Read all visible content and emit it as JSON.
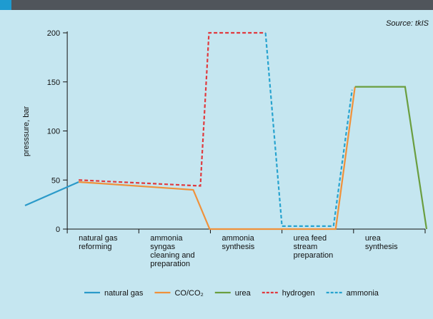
{
  "chart_data": {
    "type": "line",
    "source": "Source: tkIS",
    "ylabel": "presssure, bar",
    "categories": [
      "natural gas\nreforming",
      "ammonia\nsyngas\ncleaning and\npreparation",
      "ammonia\nsynthesis",
      "urea feed\nstream\npreparation",
      "urea\nsynthesis"
    ],
    "xlim": [
      -0.6,
      5.05
    ],
    "xticks": [
      0,
      1,
      2,
      3,
      4,
      5
    ],
    "ylim": [
      0,
      200
    ],
    "yticks": [
      0,
      50,
      100,
      150,
      200
    ],
    "series": [
      {
        "name": "natural gas",
        "color": "#2b9ac9",
        "dashed": false,
        "x": [
          -0.59,
          0.16
        ],
        "values": [
          24,
          48
        ]
      },
      {
        "name": "CO/CO₂",
        "color": "#f0913a",
        "dashed": false,
        "x": [
          0.16,
          1.76,
          1.99,
          3.75,
          4.02
        ],
        "values": [
          48,
          40,
          0,
          0,
          145
        ]
      },
      {
        "name": "urea",
        "color": "#6a9e3f",
        "dashed": false,
        "x": [
          4.02,
          4.72,
          5.02
        ],
        "values": [
          145,
          145,
          0
        ]
      },
      {
        "name": "hydrogen",
        "color": "#e03a3e",
        "dashed": true,
        "x": [
          0.16,
          1.86,
          1.98,
          2.77
        ],
        "values": [
          50,
          44,
          200,
          200
        ]
      },
      {
        "name": "ammonia",
        "color": "#27a3cf",
        "dashed": true,
        "x": [
          2.77,
          3.0,
          3.72,
          3.98
        ],
        "values": [
          200,
          3,
          3,
          142
        ]
      }
    ]
  }
}
